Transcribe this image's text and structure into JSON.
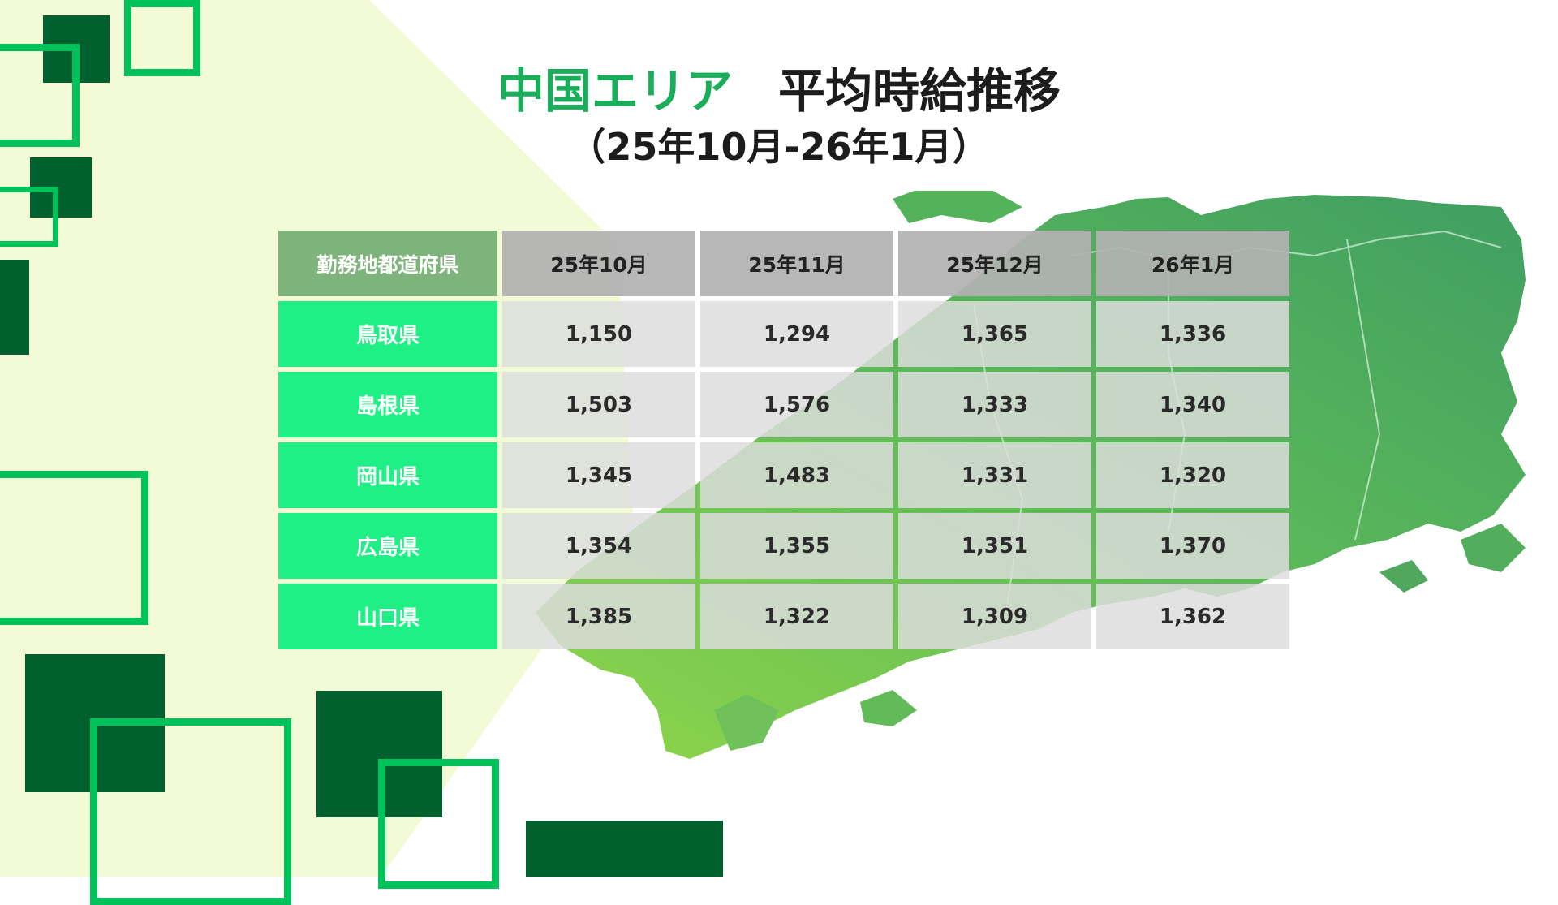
{
  "title": {
    "area": "中国エリア",
    "main": "平均時給推移",
    "period": "（25年10月-26年1月）"
  },
  "table": {
    "headers": [
      "勤務地都道府県",
      "25年10月",
      "25年11月",
      "25年12月",
      "26年1月"
    ],
    "rows": [
      {
        "prefecture": "鳥取県",
        "values": [
          "1,150",
          "1,294",
          "1,365",
          "1,336"
        ]
      },
      {
        "prefecture": "島根県",
        "values": [
          "1,503",
          "1,576",
          "1,333",
          "1,340"
        ]
      },
      {
        "prefecture": "岡山県",
        "values": [
          "1,345",
          "1,483",
          "1,331",
          "1,320"
        ]
      },
      {
        "prefecture": "広島県",
        "values": [
          "1,354",
          "1,355",
          "1,351",
          "1,370"
        ]
      },
      {
        "prefecture": "山口県",
        "values": [
          "1,385",
          "1,322",
          "1,309",
          "1,362"
        ]
      }
    ]
  },
  "colors": {
    "accent_green": "#1aad5a",
    "dark_green": "#00612f",
    "bright_green": "#00c25a",
    "row_header": "#1ff086",
    "column_header_first": "#7eb47c",
    "background_tint": "#f2fbd6"
  }
}
